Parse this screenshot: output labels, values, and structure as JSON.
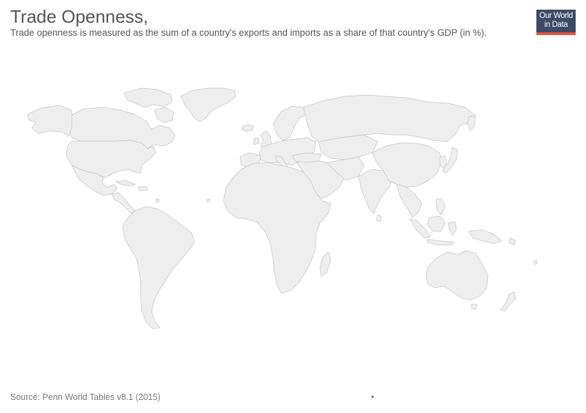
{
  "header": {
    "title": "Trade Openness,",
    "subtitle": "Trade openness is measured as the sum of a country's exports and imports as a share of that country's GDP (in %)."
  },
  "logo": {
    "line1": "Our World",
    "line2": "in Data",
    "background_color": "#3d4a66",
    "accent_color": "#e4573f"
  },
  "map": {
    "fill_color": "#eeeeee",
    "border_color": "#c4c4c4",
    "legend": "none"
  },
  "footer": {
    "source": "Source: Penn World Tables v8.1 (2015)"
  }
}
